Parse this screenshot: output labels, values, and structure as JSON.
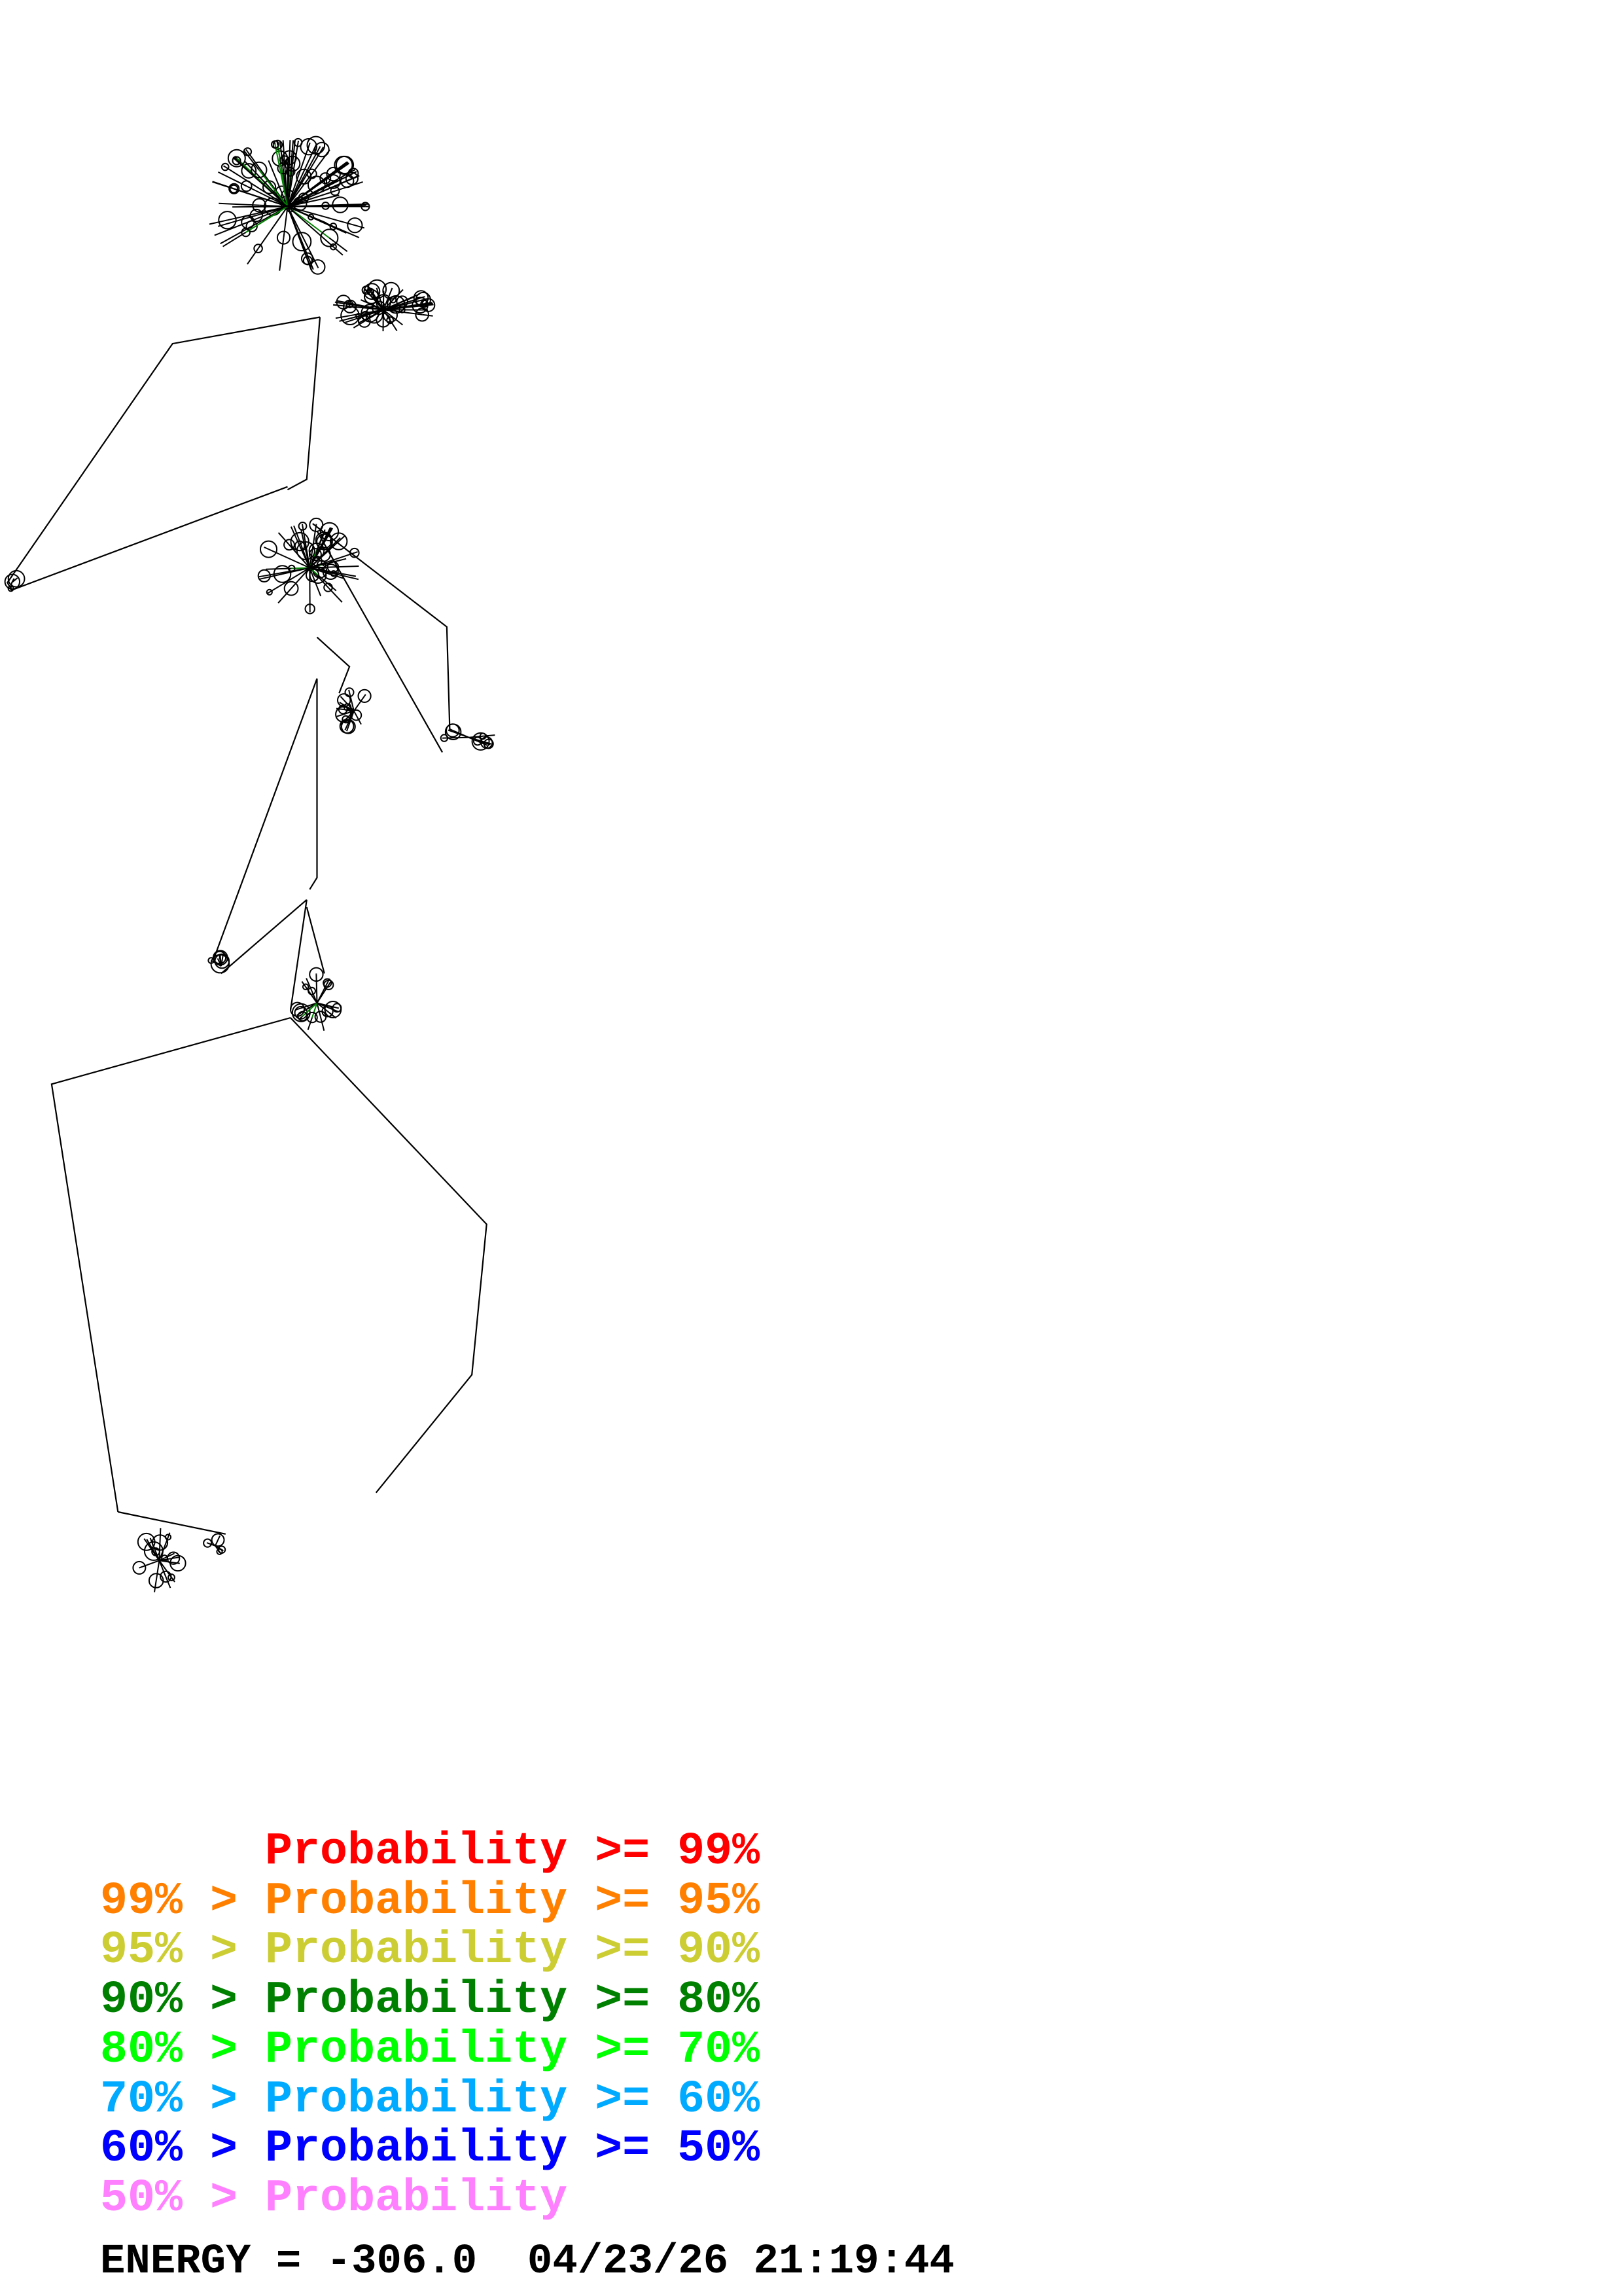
{
  "legend": {
    "rows": [
      {
        "prefix": "",
        "text": "Probability >= 99%",
        "color": "#ff0000"
      },
      {
        "prefix": "99% > ",
        "text": "Probability >= 95%",
        "color": "#ff8000"
      },
      {
        "prefix": "95% > ",
        "text": "Probability >= 90%",
        "color": "#cccc33"
      },
      {
        "prefix": "90% > ",
        "text": "Probability >= 80%",
        "color": "#008000"
      },
      {
        "prefix": "80% > ",
        "text": "Probability >= 70%",
        "color": "#00ff00"
      },
      {
        "prefix": "70% > ",
        "text": "Probability >= 60%",
        "color": "#00aaff"
      },
      {
        "prefix": "60% > ",
        "text": "Probability >= 50%",
        "color": "#0000ff"
      },
      {
        "prefix": "50% > ",
        "text": "Probability",
        "color": "#ff80ff"
      }
    ]
  },
  "footer": {
    "energy": "ENERGY = -306.0",
    "timestamp": "04/23/26 21:19:44"
  },
  "structure": {
    "line_color": "#000000",
    "accent_stem_color": "#008000"
  }
}
